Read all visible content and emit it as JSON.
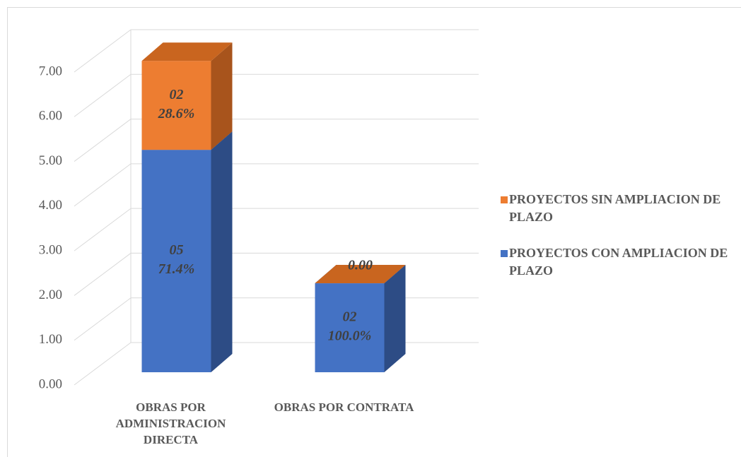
{
  "chart_data": {
    "type": "bar3d_stacked",
    "categories": [
      "OBRAS POR ADMINISTRACION DIRECTA",
      "OBRAS POR CONTRATA"
    ],
    "series": [
      {
        "name": "PROYECTOS CON AMPLIACION DE PLAZO",
        "color": "#4472c4",
        "side_color": "#2d4c85",
        "top_color": "#3b66b4",
        "values": [
          5,
          2
        ],
        "value_labels": [
          "05",
          "02"
        ],
        "percent_labels": [
          "71.4%",
          "100.0%"
        ]
      },
      {
        "name": "PROYECTOS SIN AMPLIACION DE PLAZO",
        "color": "#ed7d31",
        "side_color": "#a8541c",
        "top_color": "#c9651f",
        "values": [
          2,
          0
        ],
        "value_labels": [
          "02",
          "0.00"
        ],
        "percent_labels": [
          "28.6%",
          null
        ]
      }
    ],
    "ylim": [
      0,
      7
    ],
    "yticks": [
      {
        "value": 0,
        "label": "0.00"
      },
      {
        "value": 1,
        "label": "1.00"
      },
      {
        "value": 2,
        "label": "2.00"
      },
      {
        "value": 3,
        "label": "3.00"
      },
      {
        "value": 4,
        "label": "4.00"
      },
      {
        "value": 5,
        "label": "5.00"
      },
      {
        "value": 6,
        "label": "6.00"
      },
      {
        "value": 7,
        "label": "7.00"
      }
    ],
    "grid": true,
    "legend": "right"
  }
}
